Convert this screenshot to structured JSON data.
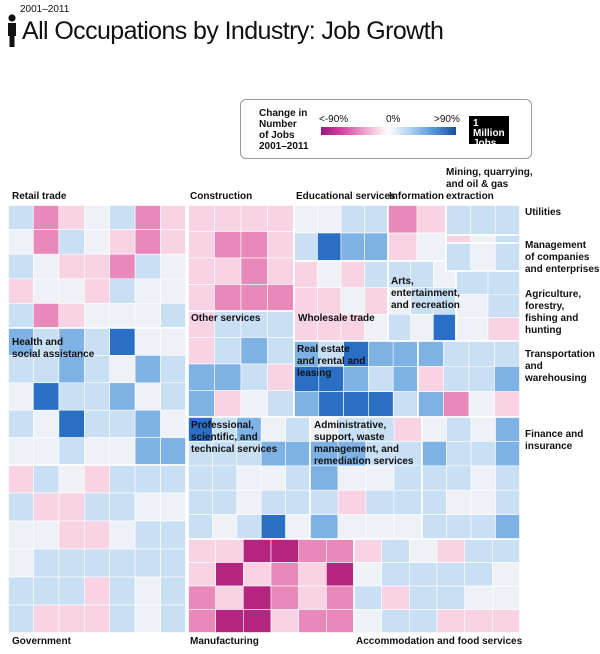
{
  "header": {
    "years": "2001–2011",
    "title": "All Occupations by Industry: Job Growth"
  },
  "legend": {
    "title": "Change in\nNumber\nof Jobs\n2001–2011",
    "low_label": "<-90%",
    "mid_label": "0%",
    "high_label": ">90%",
    "scale_label": "1 Million\nJobs"
  },
  "colors": {
    "strong_negative": "#b3257f",
    "negative": "#e889b9",
    "slight_negative": "#f8d3e3",
    "neutral": "#eef2f7",
    "slight_positive": "#c9dff4",
    "positive": "#7eb1e4",
    "strong_positive": "#2a6fc4"
  },
  "chart_data": {
    "type": "treemap",
    "title": "All Occupations by Industry: Job Growth",
    "period": "2001–2011",
    "color_metric": "Change in Number of Jobs 2001–2011",
    "color_range": [
      "<-90%",
      "0%",
      ">90%"
    ],
    "size_metric": "Number of Jobs",
    "size_scale_label": "1 Million Jobs",
    "industries": [
      {
        "name": "Retail trade",
        "label": "Retail trade",
        "tone": "mixed-pink"
      },
      {
        "name": "Health and social assistance",
        "label": "Health and\nsocial assistance",
        "tone": "blue"
      },
      {
        "name": "Government",
        "label": "Government",
        "tone": "light-blue"
      },
      {
        "name": "Construction",
        "label": "Construction",
        "tone": "pink"
      },
      {
        "name": "Other services",
        "label": "Other services",
        "tone": "mixed-blue"
      },
      {
        "name": "Professional, scientific, and technical services",
        "label": "Professional,\nscientific, and\ntechnical services",
        "tone": "blue"
      },
      {
        "name": "Manufacturing",
        "label": "Manufacturing",
        "tone": "strong-pink"
      },
      {
        "name": "Educational services",
        "label": "Educational services",
        "tone": "blue"
      },
      {
        "name": "Wholesale trade",
        "label": "Wholesale trade",
        "tone": "light-pink"
      },
      {
        "name": "Real estate and rental and leasing",
        "label": "Real estate\nand rental and\nleasing",
        "tone": "strong-blue"
      },
      {
        "name": "Administrative, support, waste management, and remediation services",
        "label": "Administrative,\nsupport, waste\nmanagement, and\nremediation services",
        "tone": "mixed-blue"
      },
      {
        "name": "Accommodation and food services",
        "label": "Accommodation and food services",
        "tone": "light-blue"
      },
      {
        "name": "Information",
        "label": "Information",
        "tone": "pink"
      },
      {
        "name": "Arts, entertainment, and recreation",
        "label": "Arts,\nentertainment,\nand recreation",
        "tone": "blue"
      },
      {
        "name": "Mining, quarrying, and oil & gas extraction",
        "label": "Mining, quarrying,\nand oil & gas\nextraction",
        "tone": "strong-blue"
      },
      {
        "name": "Utilities",
        "label": "Utilities",
        "tone": "light-blue"
      },
      {
        "name": "Management of companies and enterprises",
        "label": "Management\nof companies\nand enterprises",
        "tone": "light-blue"
      },
      {
        "name": "Agriculture, forestry, fishing and hunting",
        "label": "Agriculture,\nforestry,\nfishing and\nhunting",
        "tone": "light-pink"
      },
      {
        "name": "Transportation and warehousing",
        "label": "Transportation\nand warehousing",
        "tone": "mixed"
      },
      {
        "name": "Finance and insurance",
        "label": "Finance and\ninsurance",
        "tone": "blue"
      }
    ]
  }
}
